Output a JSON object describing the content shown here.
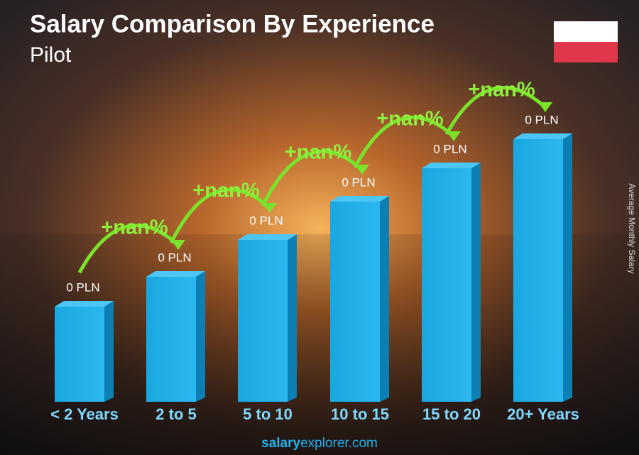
{
  "header": {
    "title": "Salary Comparison By Experience",
    "subtitle": "Pilot"
  },
  "axis_label": "Average Monthly Salary",
  "bars": [
    {
      "label": "< 2 Years",
      "value_label": "0 PLN"
    },
    {
      "label": "2 to 5",
      "value_label": "0 PLN"
    },
    {
      "label": "5 to 10",
      "value_label": "0 PLN"
    },
    {
      "label": "10 to 15",
      "value_label": "0 PLN"
    },
    {
      "label": "15 to 20",
      "value_label": "0 PLN"
    },
    {
      "label": "20+ Years",
      "value_label": "0 PLN"
    }
  ],
  "changes": [
    "+nan%",
    "+nan%",
    "+nan%",
    "+nan%",
    "+nan%"
  ],
  "footer": {
    "brand_bold": "salary",
    "brand_rest": "explorer.com"
  }
}
